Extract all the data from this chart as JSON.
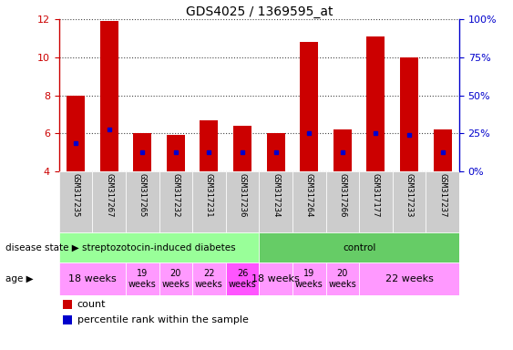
{
  "title": "GDS4025 / 1369595_at",
  "samples": [
    "GSM317235",
    "GSM317267",
    "GSM317265",
    "GSM317232",
    "GSM317231",
    "GSM317236",
    "GSM317234",
    "GSM317264",
    "GSM317266",
    "GSM317177",
    "GSM317233",
    "GSM317237"
  ],
  "count_values": [
    8.0,
    11.9,
    6.0,
    5.9,
    6.7,
    6.4,
    6.0,
    10.8,
    6.2,
    11.1,
    10.0,
    6.2
  ],
  "percentile_values": [
    5.5,
    6.2,
    5.0,
    5.0,
    5.0,
    5.0,
    5.0,
    6.0,
    5.0,
    6.0,
    5.9,
    5.0
  ],
  "bar_bottom": 4.0,
  "ylim": [
    4.0,
    12.0
  ],
  "right_ylim": [
    0,
    100
  ],
  "right_yticks": [
    0,
    25,
    50,
    75,
    100
  ],
  "right_yticklabels": [
    "0%",
    "25%",
    "50%",
    "75%",
    "100%"
  ],
  "left_yticks": [
    4,
    6,
    8,
    10,
    12
  ],
  "bar_color": "#cc0000",
  "percentile_color": "#0000cc",
  "grid_color": "#444444",
  "disease_state_groups": [
    {
      "label": "streptozotocin-induced diabetes",
      "start": 0,
      "end": 6,
      "color": "#99ff99"
    },
    {
      "label": "control",
      "start": 6,
      "end": 12,
      "color": "#66cc66"
    }
  ],
  "age_groups": [
    {
      "label": "18 weeks",
      "start": 0,
      "end": 2,
      "color": "#ff99ff",
      "fontsize": 8,
      "two_line": false
    },
    {
      "label": "19\nweeks",
      "start": 2,
      "end": 3,
      "color": "#ff99ff",
      "fontsize": 7,
      "two_line": true
    },
    {
      "label": "20\nweeks",
      "start": 3,
      "end": 4,
      "color": "#ff99ff",
      "fontsize": 7,
      "two_line": true
    },
    {
      "label": "22\nweeks",
      "start": 4,
      "end": 5,
      "color": "#ff99ff",
      "fontsize": 7,
      "two_line": true
    },
    {
      "label": "26\nweeks",
      "start": 5,
      "end": 6,
      "color": "#ff55ff",
      "fontsize": 7,
      "two_line": true
    },
    {
      "label": "18 weeks",
      "start": 6,
      "end": 7,
      "color": "#ff99ff",
      "fontsize": 8,
      "two_line": false
    },
    {
      "label": "19\nweeks",
      "start": 7,
      "end": 8,
      "color": "#ff99ff",
      "fontsize": 7,
      "two_line": true
    },
    {
      "label": "20\nweeks",
      "start": 8,
      "end": 9,
      "color": "#ff99ff",
      "fontsize": 7,
      "two_line": true
    },
    {
      "label": "22 weeks",
      "start": 9,
      "end": 12,
      "color": "#ff99ff",
      "fontsize": 8,
      "two_line": false
    }
  ],
  "left_axis_color": "#cc0000",
  "right_axis_color": "#0000cc",
  "tick_area_bg": "#cccccc"
}
